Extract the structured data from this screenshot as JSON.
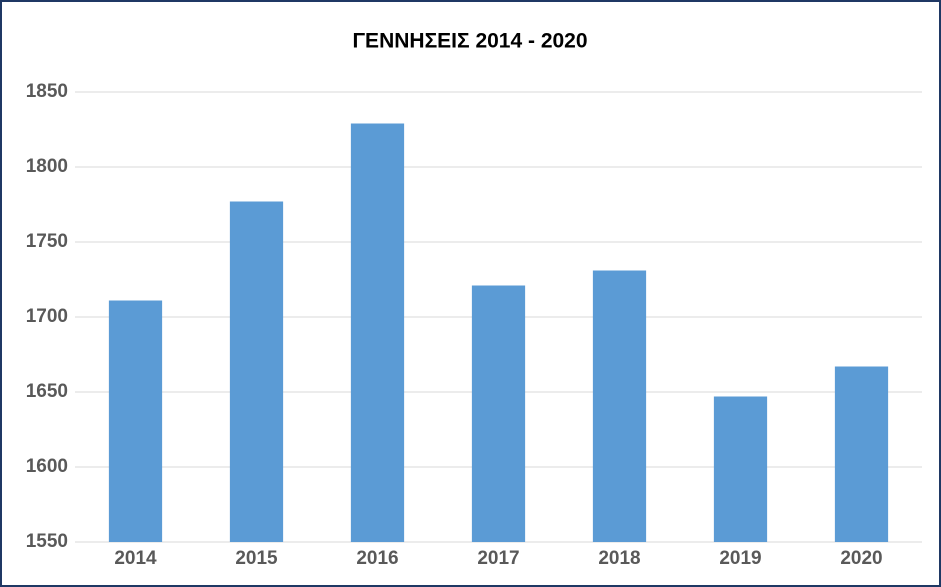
{
  "chart_data": {
    "type": "bar",
    "title": "ΓΕΝΝΗΣΕΙΣ 2014 - 2020",
    "categories": [
      "2014",
      "2015",
      "2016",
      "2017",
      "2018",
      "2019",
      "2020"
    ],
    "values": [
      1711,
      1777,
      1829,
      1721,
      1731,
      1647,
      1667
    ],
    "color": "#5b9bd5",
    "ylim": [
      1550,
      1850
    ],
    "yticks": [
      1550,
      1600,
      1650,
      1700,
      1750,
      1800,
      1850
    ],
    "grid": true
  }
}
